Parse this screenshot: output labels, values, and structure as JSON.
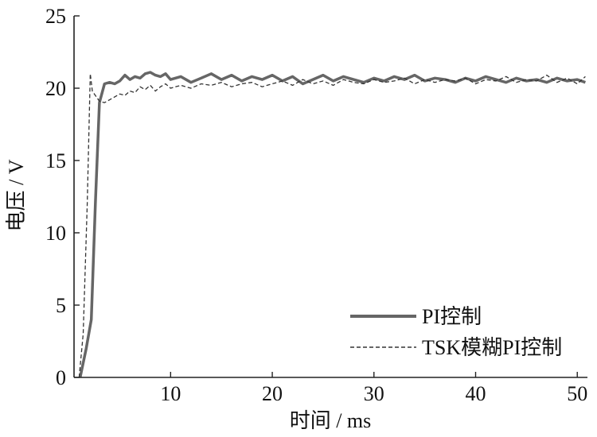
{
  "chart_data": {
    "type": "line",
    "xlabel": "时间 / ms",
    "ylabel": "电压 / V",
    "xlim": [
      0.5,
      51
    ],
    "ylim": [
      0,
      25
    ],
    "x_ticks": [
      10,
      20,
      30,
      40,
      50
    ],
    "y_ticks": [
      0,
      5,
      10,
      15,
      20,
      25
    ],
    "grid": false,
    "legend_position": "bottom-right",
    "colors": {
      "pi": "#666666",
      "tsk": "#333333"
    },
    "series": [
      {
        "name": "PI控制",
        "style": "solid",
        "x": [
          1.1,
          1.7,
          2.2,
          2.6,
          3.0,
          3.5,
          4.0,
          4.5,
          5.0,
          5.5,
          6.0,
          6.5,
          7.0,
          7.5,
          8.0,
          8.5,
          9.0,
          9.5,
          10.0,
          11.0,
          12.0,
          13.0,
          14.0,
          15.0,
          16.0,
          17.0,
          18.0,
          19.0,
          20.0,
          21.0,
          22.0,
          23.0,
          24.0,
          25.0,
          26.0,
          27.0,
          28.0,
          29.0,
          30.0,
          31.0,
          32.0,
          33.0,
          34.0,
          35.0,
          36.0,
          37.0,
          38.0,
          39.0,
          40.0,
          41.0,
          42.0,
          43.0,
          44.0,
          45.0,
          46.0,
          47.0,
          48.0,
          49.0,
          50.0,
          50.8
        ],
        "y": [
          0.0,
          2.0,
          4.0,
          12.0,
          19.0,
          20.3,
          20.4,
          20.3,
          20.5,
          20.9,
          20.6,
          20.8,
          20.7,
          21.0,
          21.1,
          20.9,
          20.8,
          21.0,
          20.6,
          20.8,
          20.4,
          20.7,
          21.0,
          20.6,
          20.9,
          20.5,
          20.8,
          20.6,
          20.9,
          20.5,
          20.8,
          20.3,
          20.6,
          20.9,
          20.5,
          20.8,
          20.6,
          20.4,
          20.7,
          20.5,
          20.8,
          20.6,
          20.9,
          20.5,
          20.7,
          20.6,
          20.4,
          20.7,
          20.5,
          20.8,
          20.6,
          20.4,
          20.7,
          20.5,
          20.6,
          20.4,
          20.7,
          20.5,
          20.6,
          20.4
        ]
      },
      {
        "name": "TSK模糊PI控制",
        "style": "dashed",
        "x": [
          1.0,
          1.4,
          1.8,
          2.1,
          2.3,
          2.6,
          3.0,
          3.5,
          4.0,
          4.5,
          5.0,
          5.5,
          6.0,
          6.5,
          7.0,
          7.5,
          8.0,
          8.5,
          9.0,
          9.5,
          10.0,
          11.0,
          12.0,
          13.0,
          14.0,
          15.0,
          16.0,
          17.0,
          18.0,
          19.0,
          20.0,
          21.0,
          22.0,
          23.0,
          24.0,
          25.0,
          26.0,
          27.0,
          28.0,
          29.0,
          30.0,
          31.0,
          32.0,
          33.0,
          34.0,
          35.0,
          36.0,
          37.0,
          38.0,
          39.0,
          40.0,
          41.0,
          42.0,
          43.0,
          44.0,
          45.0,
          46.0,
          47.0,
          48.0,
          49.0,
          50.0,
          50.8
        ],
        "y": [
          0.0,
          3.0,
          12.0,
          21.0,
          19.8,
          19.5,
          19.1,
          19.0,
          19.2,
          19.4,
          19.6,
          19.5,
          19.8,
          19.7,
          20.1,
          19.9,
          20.2,
          19.8,
          20.1,
          20.3,
          20.0,
          20.2,
          20.0,
          20.3,
          20.2,
          20.4,
          20.1,
          20.3,
          20.4,
          20.1,
          20.3,
          20.5,
          20.2,
          20.6,
          20.3,
          20.5,
          20.2,
          20.6,
          20.4,
          20.3,
          20.6,
          20.4,
          20.5,
          20.7,
          20.3,
          20.6,
          20.4,
          20.6,
          20.5,
          20.7,
          20.3,
          20.6,
          20.5,
          20.8,
          20.4,
          20.6,
          20.5,
          20.9,
          20.4,
          20.7,
          20.3,
          20.8
        ]
      }
    ]
  }
}
